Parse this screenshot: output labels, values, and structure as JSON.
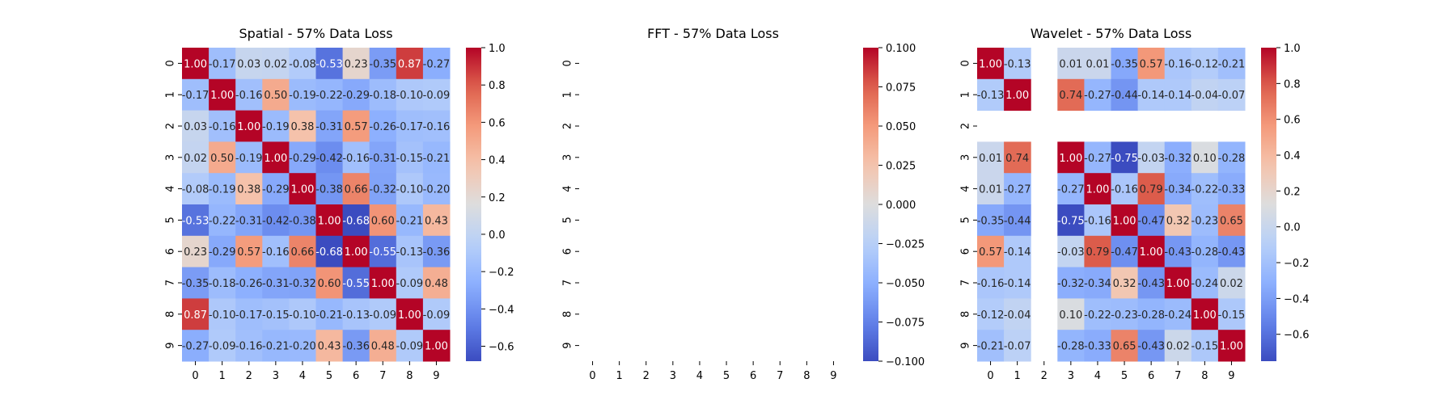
{
  "figure": {
    "background": "#ffffff",
    "colormap": "coolwarm"
  },
  "chart_data": [
    {
      "type": "heatmap",
      "title": "Spatial - 57% Data Loss",
      "xticks": [
        "0",
        "1",
        "2",
        "3",
        "4",
        "5",
        "6",
        "7",
        "8",
        "9"
      ],
      "yticks": [
        "0",
        "1",
        "2",
        "3",
        "4",
        "5",
        "6",
        "7",
        "8",
        "9"
      ],
      "xlabel": "",
      "ylabel": "",
      "annotated": true,
      "value_range": [
        -0.68,
        1.0
      ],
      "colorbar_ticks": [
        "1.0",
        "0.8",
        "0.6",
        "0.4",
        "0.2",
        "0.0",
        "−0.2",
        "−0.4",
        "−0.6"
      ],
      "colorbar_tick_values": [
        1.0,
        0.8,
        0.6,
        0.4,
        0.2,
        0.0,
        -0.2,
        -0.4,
        -0.6
      ],
      "values": [
        [
          1.0,
          -0.17,
          0.03,
          0.02,
          -0.08,
          -0.53,
          0.23,
          -0.35,
          0.87,
          -0.27
        ],
        [
          -0.17,
          1.0,
          -0.16,
          0.5,
          -0.19,
          -0.22,
          -0.29,
          -0.18,
          -0.1,
          -0.09
        ],
        [
          0.03,
          -0.16,
          1.0,
          -0.19,
          0.38,
          -0.31,
          0.57,
          -0.26,
          -0.17,
          -0.16
        ],
        [
          0.02,
          0.5,
          -0.19,
          1.0,
          -0.29,
          -0.42,
          -0.16,
          -0.31,
          -0.15,
          -0.21
        ],
        [
          -0.08,
          -0.19,
          0.38,
          -0.29,
          1.0,
          -0.38,
          0.66,
          -0.32,
          -0.1,
          -0.2
        ],
        [
          -0.53,
          -0.22,
          -0.31,
          -0.42,
          -0.38,
          1.0,
          -0.68,
          0.6,
          -0.21,
          0.43
        ],
        [
          0.23,
          -0.29,
          0.57,
          -0.16,
          0.66,
          -0.68,
          1.0,
          -0.55,
          -0.13,
          -0.36
        ],
        [
          -0.35,
          -0.18,
          -0.26,
          -0.31,
          -0.32,
          0.6,
          -0.55,
          1.0,
          -0.09,
          0.48
        ],
        [
          0.87,
          -0.1,
          -0.17,
          -0.15,
          -0.1,
          -0.21,
          -0.13,
          -0.09,
          1.0,
          -0.09
        ],
        [
          -0.27,
          -0.09,
          -0.16,
          -0.21,
          -0.2,
          0.43,
          -0.36,
          0.48,
          -0.09,
          1.0
        ]
      ],
      "labels": [
        [
          "1.00",
          "-0.17",
          "0.03",
          "0.02",
          "-0.08",
          "-0.53",
          "0.23",
          "-0.35",
          "0.87",
          "-0.27"
        ],
        [
          "-0.17",
          "1.00",
          "-0.16",
          "0.50",
          "-0.19",
          "-0.22",
          "-0.29",
          "-0.18",
          "-0.10",
          "-0.09"
        ],
        [
          "0.03",
          "-0.16",
          "1.00",
          "-0.19",
          "0.38",
          "-0.31",
          "0.57",
          "-0.26",
          "-0.17",
          "-0.16"
        ],
        [
          "0.02",
          "0.50",
          "-0.19",
          "1.00",
          "-0.29",
          "-0.42",
          "-0.16",
          "-0.31",
          "-0.15",
          "-0.21"
        ],
        [
          "-0.08",
          "-0.19",
          "0.38",
          "-0.29",
          "1.00",
          "-0.38",
          "0.66",
          "-0.32",
          "-0.10",
          "-0.20"
        ],
        [
          "-0.53",
          "-0.22",
          "-0.31",
          "-0.42",
          "-0.38",
          "1.00",
          "-0.68",
          "0.60",
          "-0.21",
          "0.43"
        ],
        [
          "0.23",
          "-0.29",
          "0.57",
          "-0.16",
          "0.66",
          "-0.68",
          "1.00",
          "-0.55",
          "-0.13",
          "-0.36"
        ],
        [
          "-0.35",
          "-0.18",
          "-0.26",
          "-0.31",
          "-0.32",
          "0.60",
          "-0.55",
          "1.00",
          "-0.09",
          "0.48"
        ],
        [
          "0.87",
          "-0.10",
          "-0.17",
          "-0.15",
          "-0.10",
          "-0.21",
          "-0.13",
          "-0.09",
          "1.00",
          "-0.09"
        ],
        [
          "-0.27",
          "-0.09",
          "-0.16",
          "-0.21",
          "-0.20",
          "0.43",
          "-0.36",
          "0.48",
          "-0.09",
          "1.00"
        ]
      ]
    },
    {
      "type": "heatmap",
      "title": "FFT - 57% Data Loss",
      "xticks": [
        "0",
        "1",
        "2",
        "3",
        "4",
        "5",
        "6",
        "7",
        "8",
        "9"
      ],
      "yticks": [
        "0",
        "1",
        "2",
        "3",
        "4",
        "5",
        "6",
        "7",
        "8",
        "9"
      ],
      "xlabel": "",
      "ylabel": "",
      "annotated": true,
      "value_range": [
        -0.1,
        0.1
      ],
      "colorbar_ticks": [
        "0.100",
        "0.075",
        "0.050",
        "0.025",
        "0.000",
        "−0.025",
        "−0.050",
        "−0.075",
        "−0.100"
      ],
      "colorbar_tick_values": [
        0.1,
        0.075,
        0.05,
        0.025,
        0.0,
        -0.025,
        -0.05,
        -0.075,
        -0.1
      ],
      "values": [
        [
          null,
          null,
          null,
          null,
          null,
          null,
          null,
          null,
          null,
          null
        ],
        [
          null,
          null,
          null,
          null,
          null,
          null,
          null,
          null,
          null,
          null
        ],
        [
          null,
          null,
          null,
          null,
          null,
          null,
          null,
          null,
          null,
          null
        ],
        [
          null,
          null,
          null,
          null,
          null,
          null,
          null,
          null,
          null,
          null
        ],
        [
          null,
          null,
          null,
          null,
          null,
          null,
          null,
          null,
          null,
          null
        ],
        [
          null,
          null,
          null,
          null,
          null,
          null,
          null,
          null,
          null,
          null
        ],
        [
          null,
          null,
          null,
          null,
          null,
          null,
          null,
          null,
          null,
          null
        ],
        [
          null,
          null,
          null,
          null,
          null,
          null,
          null,
          null,
          null,
          null
        ],
        [
          null,
          null,
          null,
          null,
          null,
          null,
          null,
          null,
          null,
          null
        ],
        [
          null,
          null,
          null,
          null,
          null,
          null,
          null,
          null,
          null,
          null
        ]
      ],
      "labels": [
        [
          "",
          "",
          "",
          "",
          "",
          "",
          "",
          "",
          "",
          ""
        ],
        [
          "",
          "",
          "",
          "",
          "",
          "",
          "",
          "",
          "",
          ""
        ],
        [
          "",
          "",
          "",
          "",
          "",
          "",
          "",
          "",
          "",
          ""
        ],
        [
          "",
          "",
          "",
          "",
          "",
          "",
          "",
          "",
          "",
          ""
        ],
        [
          "",
          "",
          "",
          "",
          "",
          "",
          "",
          "",
          "",
          ""
        ],
        [
          "",
          "",
          "",
          "",
          "",
          "",
          "",
          "",
          "",
          ""
        ],
        [
          "",
          "",
          "",
          "",
          "",
          "",
          "",
          "",
          "",
          ""
        ],
        [
          "",
          "",
          "",
          "",
          "",
          "",
          "",
          "",
          "",
          ""
        ],
        [
          "",
          "",
          "",
          "",
          "",
          "",
          "",
          "",
          "",
          ""
        ],
        [
          "",
          "",
          "",
          "",
          "",
          "",
          "",
          "",
          "",
          ""
        ]
      ]
    },
    {
      "type": "heatmap",
      "title": "Wavelet - 57% Data Loss",
      "xticks": [
        "0",
        "1",
        "2",
        "3",
        "4",
        "5",
        "6",
        "7",
        "8",
        "9"
      ],
      "yticks": [
        "0",
        "1",
        "2",
        "3",
        "4",
        "5",
        "6",
        "7",
        "8",
        "9"
      ],
      "xlabel": "",
      "ylabel": "",
      "annotated": true,
      "value_range": [
        -0.75,
        1.0
      ],
      "colorbar_ticks": [
        "1.0",
        "0.8",
        "0.6",
        "0.4",
        "0.2",
        "0.0",
        "−0.2",
        "−0.4",
        "−0.6"
      ],
      "colorbar_tick_values": [
        1.0,
        0.8,
        0.6,
        0.4,
        0.2,
        0.0,
        -0.2,
        -0.4,
        -0.6
      ],
      "values": [
        [
          1.0,
          -0.13,
          null,
          0.01,
          0.01,
          -0.35,
          0.57,
          -0.16,
          -0.12,
          -0.21
        ],
        [
          -0.13,
          1.0,
          null,
          0.74,
          -0.27,
          -0.44,
          -0.14,
          -0.14,
          -0.04,
          -0.07
        ],
        [
          null,
          null,
          null,
          null,
          null,
          null,
          null,
          null,
          null,
          null
        ],
        [
          0.01,
          0.74,
          null,
          1.0,
          -0.27,
          -0.75,
          -0.03,
          -0.32,
          0.1,
          -0.28
        ],
        [
          0.01,
          -0.27,
          null,
          -0.27,
          1.0,
          -0.16,
          0.79,
          -0.34,
          -0.22,
          -0.33
        ],
        [
          -0.35,
          -0.44,
          null,
          -0.75,
          -0.16,
          1.0,
          -0.47,
          0.32,
          -0.23,
          0.65
        ],
        [
          0.57,
          -0.14,
          null,
          -0.03,
          0.79,
          -0.47,
          1.0,
          -0.43,
          -0.28,
          -0.43
        ],
        [
          -0.16,
          -0.14,
          null,
          -0.32,
          -0.34,
          0.32,
          -0.43,
          1.0,
          -0.24,
          0.02
        ],
        [
          -0.12,
          -0.04,
          null,
          0.1,
          -0.22,
          -0.23,
          -0.28,
          -0.24,
          1.0,
          -0.15
        ],
        [
          -0.21,
          -0.07,
          null,
          -0.28,
          -0.33,
          0.65,
          -0.43,
          0.02,
          -0.15,
          1.0
        ]
      ],
      "labels": [
        [
          "1.00",
          "-0.13",
          "",
          "0.01",
          "0.01",
          "-0.35",
          "0.57",
          "-0.16",
          "-0.12",
          "-0.21"
        ],
        [
          "-0.13",
          "1.00",
          "",
          "0.74",
          "-0.27",
          "-0.44",
          "-0.14",
          "-0.14",
          "-0.04",
          "-0.07"
        ],
        [
          "",
          "",
          "",
          "",
          "",
          "",
          "",
          "",
          "",
          ""
        ],
        [
          "0.01",
          "0.74",
          "",
          "1.00",
          "-0.27",
          "-0.75",
          "-0.03",
          "-0.32",
          "0.10",
          "-0.28"
        ],
        [
          "0.01",
          "-0.27",
          "",
          "-0.27",
          "1.00",
          "-0.16",
          "0.79",
          "-0.34",
          "-0.22",
          "-0.33"
        ],
        [
          "-0.35",
          "-0.44",
          "",
          "-0.75",
          "-0.16",
          "1.00",
          "-0.47",
          "0.32",
          "-0.23",
          "0.65"
        ],
        [
          "0.57",
          "-0.14",
          "",
          "-0.03",
          "0.79",
          "-0.47",
          "1.00",
          "-0.43",
          "-0.28",
          "-0.43"
        ],
        [
          "-0.16",
          "-0.14",
          "",
          "-0.32",
          "-0.34",
          "0.32",
          "-0.43",
          "1.00",
          "-0.24",
          "0.02"
        ],
        [
          "-0.12",
          "-0.04",
          "",
          "0.10",
          "-0.22",
          "-0.23",
          "-0.28",
          "-0.24",
          "1.00",
          "-0.15"
        ],
        [
          "-0.21",
          "-0.07",
          "",
          "-0.28",
          "-0.33",
          "0.65",
          "-0.43",
          "0.02",
          "-0.15",
          "1.00"
        ]
      ]
    }
  ]
}
